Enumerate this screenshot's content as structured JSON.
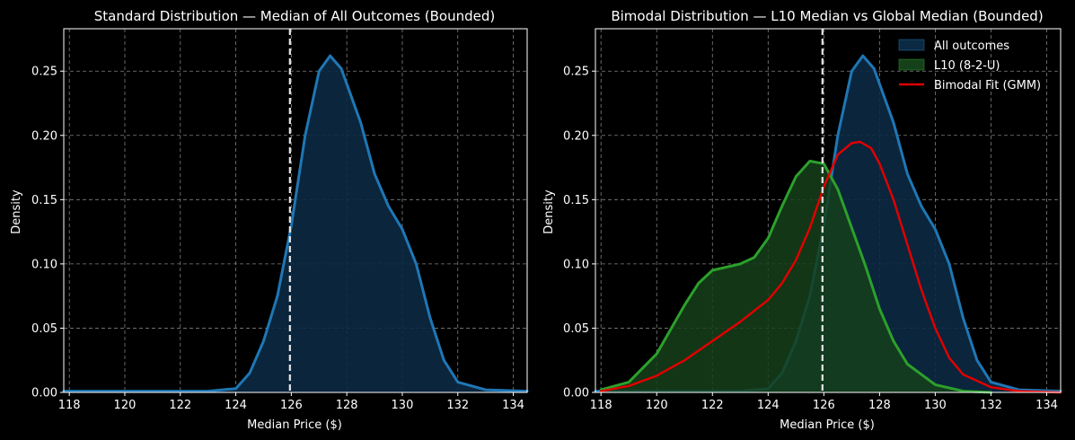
{
  "colors": {
    "background": "#000000",
    "axis": "#ffffff",
    "grid": "#808080",
    "all_outcomes": "#1f77b4",
    "all_outcomes_fill": "#0b2942",
    "l10": "#2ca02c",
    "l10_fill": "#15401a",
    "gmm": "#e00000",
    "median_line": "#e6e6e6"
  },
  "chart_data": [
    {
      "type": "area",
      "title": "Standard Distribution — Median of All Outcomes (Bounded)",
      "xlabel": "Median Price ($)",
      "ylabel": "Density",
      "xlim": [
        117.8,
        134.5
      ],
      "ylim": [
        0,
        0.283
      ],
      "xticks": [
        118,
        120,
        122,
        124,
        126,
        128,
        130,
        132,
        134
      ],
      "yticks": [
        0.0,
        0.05,
        0.1,
        0.15,
        0.2,
        0.25
      ],
      "ytick_labels": [
        "0.00",
        "0.05",
        "0.10",
        "0.15",
        "0.20",
        "0.25"
      ],
      "grid": true,
      "median_line": 125.95,
      "series": [
        {
          "key": "all",
          "x": [
            117.8,
            122,
            123,
            124,
            124.5,
            125,
            125.5,
            126,
            126.5,
            127,
            127.4,
            127.8,
            128.5,
            129,
            129.5,
            130,
            130.5,
            131,
            131.5,
            132,
            133,
            134.5
          ],
          "y": [
            0.001,
            0.001,
            0.001,
            0.003,
            0.015,
            0.04,
            0.075,
            0.13,
            0.2,
            0.25,
            0.262,
            0.252,
            0.21,
            0.17,
            0.145,
            0.127,
            0.1,
            0.058,
            0.025,
            0.008,
            0.002,
            0.001
          ]
        }
      ]
    },
    {
      "type": "area",
      "title": "Bimodal Distribution — L10 Median vs Global Median (Bounded)",
      "xlabel": "Median Price ($)",
      "ylabel": "Density",
      "xlim": [
        117.8,
        134.5
      ],
      "ylim": [
        0,
        0.283
      ],
      "xticks": [
        118,
        120,
        122,
        124,
        126,
        128,
        130,
        132,
        134
      ],
      "yticks": [
        0.0,
        0.05,
        0.1,
        0.15,
        0.2,
        0.25
      ],
      "ytick_labels": [
        "0.00",
        "0.05",
        "0.10",
        "0.15",
        "0.20",
        "0.25"
      ],
      "grid": true,
      "legend_position": "top-right",
      "median_line": 125.95,
      "series": [
        {
          "key": "all",
          "name": "All outcomes",
          "x": [
            117.8,
            122,
            123,
            124,
            124.5,
            125,
            125.5,
            126,
            126.5,
            127,
            127.4,
            127.8,
            128.5,
            129,
            129.5,
            130,
            130.5,
            131,
            131.5,
            132,
            133,
            134.5
          ],
          "y": [
            0.001,
            0.001,
            0.001,
            0.003,
            0.015,
            0.04,
            0.075,
            0.13,
            0.2,
            0.25,
            0.262,
            0.252,
            0.21,
            0.17,
            0.145,
            0.127,
            0.1,
            0.058,
            0.025,
            0.008,
            0.002,
            0.001
          ]
        },
        {
          "key": "l10",
          "name": "L10 (8-2-U)",
          "x": [
            118,
            119,
            120,
            121,
            121.5,
            122,
            123,
            123.5,
            124,
            124.5,
            125,
            125.5,
            126,
            126.5,
            127,
            127.5,
            128,
            128.5,
            129,
            130,
            131,
            132
          ],
          "y": [
            0.002,
            0.008,
            0.03,
            0.068,
            0.085,
            0.095,
            0.1,
            0.105,
            0.12,
            0.145,
            0.168,
            0.18,
            0.178,
            0.158,
            0.128,
            0.098,
            0.065,
            0.04,
            0.022,
            0.006,
            0.001,
            0.0
          ]
        },
        {
          "key": "gmm",
          "name": "Bimodal Fit (GMM)",
          "x": [
            118,
            119,
            120,
            121,
            122,
            123,
            124,
            124.5,
            125,
            125.5,
            126,
            126.5,
            127,
            127.3,
            127.7,
            128,
            128.5,
            129,
            129.5,
            130,
            130.5,
            131,
            132,
            133,
            134.5
          ],
          "y": [
            0.001,
            0.005,
            0.013,
            0.025,
            0.04,
            0.055,
            0.072,
            0.085,
            0.103,
            0.128,
            0.16,
            0.185,
            0.194,
            0.195,
            0.19,
            0.178,
            0.15,
            0.115,
            0.08,
            0.05,
            0.027,
            0.014,
            0.004,
            0.001,
            0.0
          ]
        }
      ]
    }
  ]
}
